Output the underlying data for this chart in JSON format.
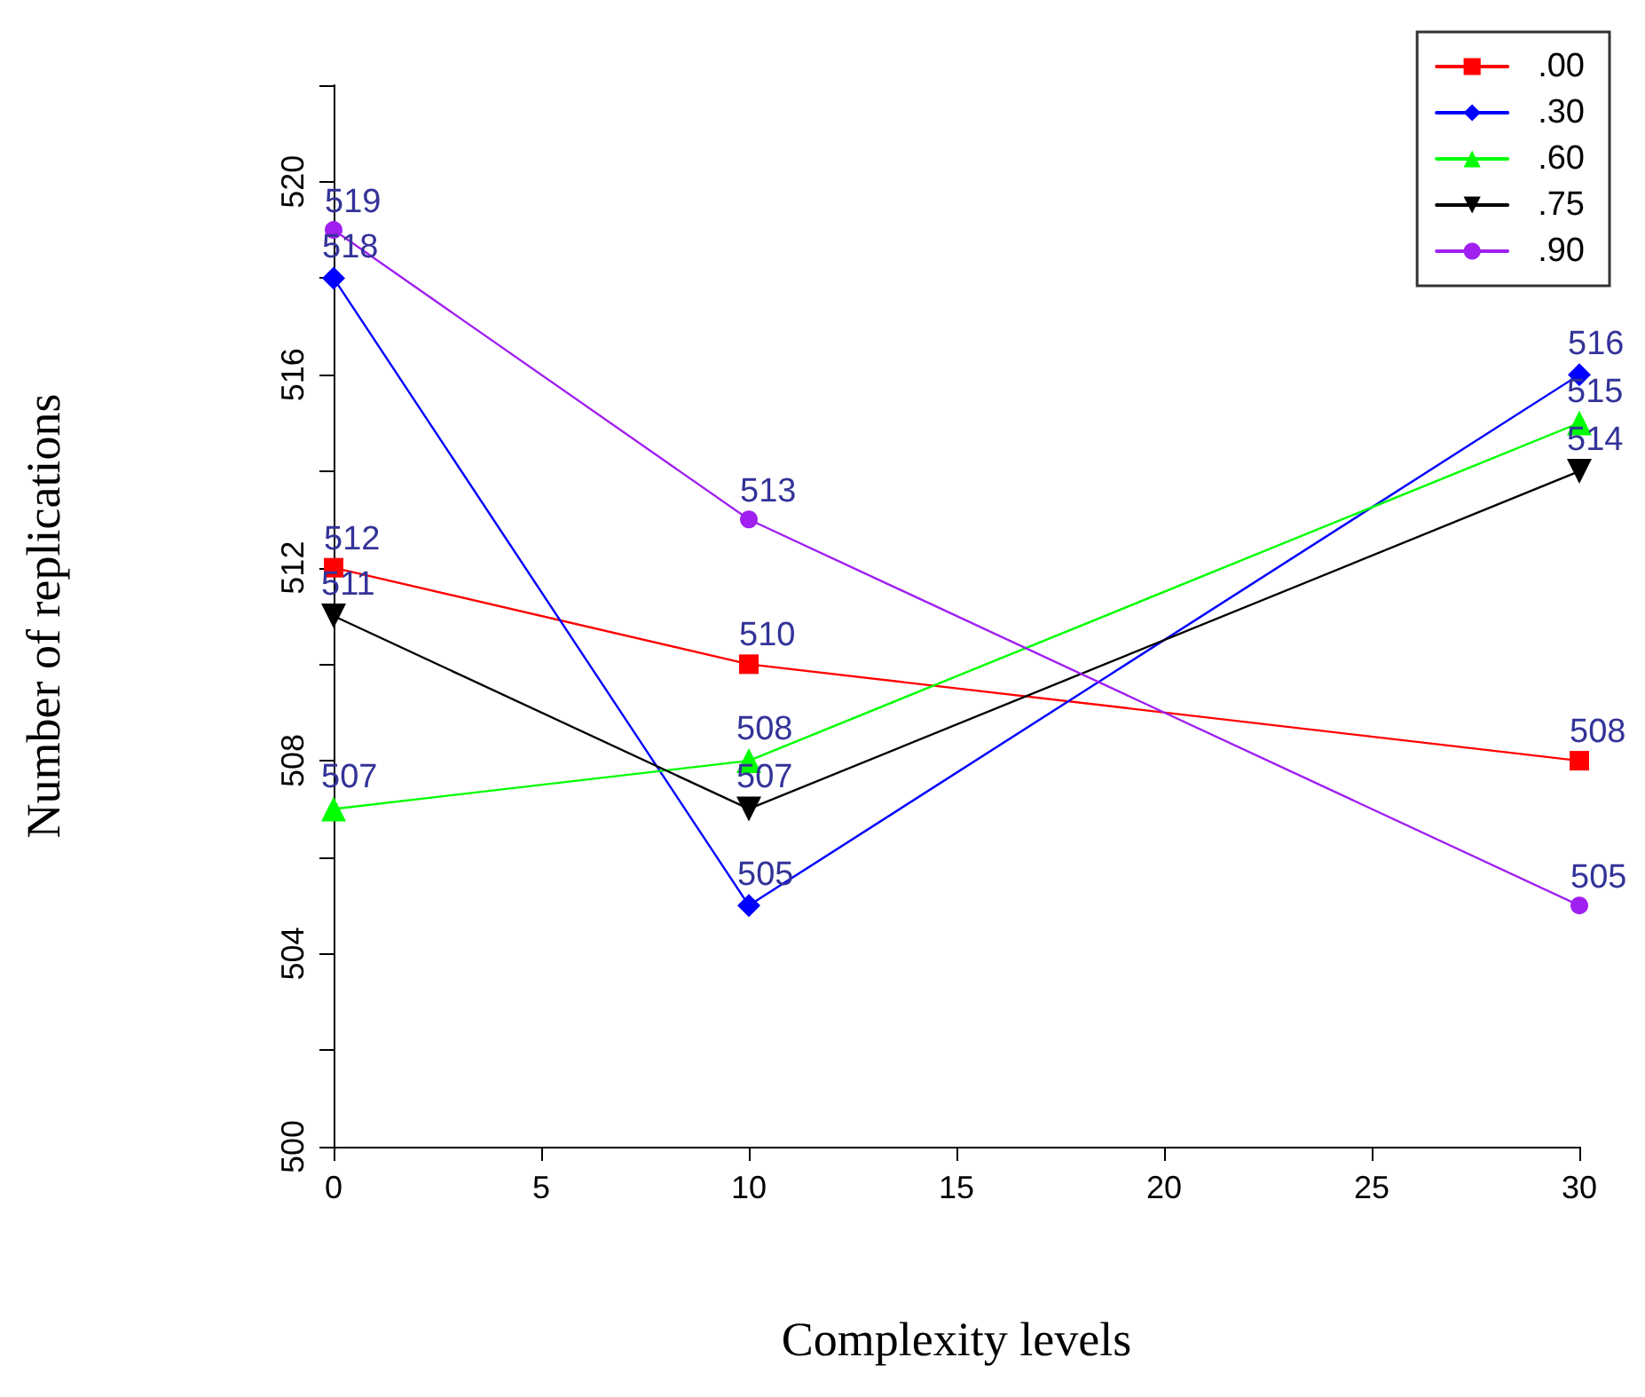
{
  "chart_data": {
    "type": "line",
    "xlabel": "Complexity levels",
    "ylabel": "Number of replications",
    "x": [
      0,
      10,
      30
    ],
    "xlim": [
      0,
      30
    ],
    "xticks": [
      0,
      5,
      10,
      15,
      20,
      25,
      30
    ],
    "ylim": [
      500,
      522
    ],
    "yticks": [
      500,
      {
        "value": 502,
        "label": null
      },
      504,
      {
        "value": 506,
        "label": null
      },
      508,
      {
        "value": 510,
        "label": null
      },
      512,
      {
        "value": 514,
        "label": null
      },
      516,
      {
        "value": 518,
        "label": null
      },
      520,
      {
        "value": 522,
        "label": null
      }
    ],
    "grid": false,
    "legend": "top right",
    "data_labels": true,
    "line_style": "solid",
    "series": [
      {
        "name": ".00",
        "color": "#ff0000",
        "marker": "square",
        "values": [
          512,
          510,
          508
        ]
      },
      {
        "name": ".30",
        "color": "#0000ff",
        "marker": "diamond",
        "values": [
          518,
          505,
          516
        ]
      },
      {
        "name": ".60",
        "color": "#00ff00",
        "marker": "triangle",
        "values": [
          507,
          508,
          515
        ]
      },
      {
        "name": ".75",
        "color": "#000000",
        "marker": "triangle-down",
        "values": [
          511,
          507,
          514
        ]
      },
      {
        "name": ".90",
        "color": "#a020f0",
        "marker": "circle",
        "values": [
          519,
          513,
          505
        ]
      }
    ]
  }
}
